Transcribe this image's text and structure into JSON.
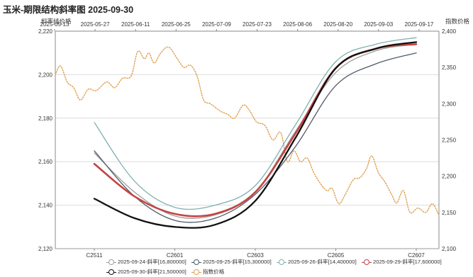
{
  "title": "玉米-期限结构斜率图 2025-09-30",
  "chart_data": {
    "type": "line",
    "left_axis": {
      "label": "斜率线价格",
      "range": [
        2120,
        2220
      ],
      "ticks": [
        "2,120",
        "2,140",
        "2,160",
        "2,180",
        "2,200",
        "2,220"
      ]
    },
    "right_axis": {
      "label": "指数价格",
      "range": [
        2100,
        2400
      ],
      "ticks": [
        "2,100",
        "2,150",
        "2,200",
        "2,250",
        "2,300",
        "2,350",
        "2,400"
      ]
    },
    "top_date_ticks": [
      "2025-05-13",
      "2025-05-27",
      "2025-06-11",
      "2025-06-25",
      "2025-07-09",
      "2025-07-23",
      "2025-08-06",
      "2025-08-20",
      "2025-09-03",
      "2025-09-17"
    ],
    "contract_ticks": [
      "C2511",
      "C2601",
      "C2603",
      "C2605",
      "C2607"
    ],
    "grid": true,
    "legend_position": "bottom",
    "slope_series": [
      {
        "name": "2025-09-24-斜率[16,800000]",
        "color": "#9e9e9e",
        "width": 1.3,
        "points": [
          [
            0,
            2164
          ],
          [
            0.5,
            2146
          ],
          [
            1,
            2135
          ],
          [
            1.5,
            2135.5
          ],
          [
            2,
            2146
          ],
          [
            2.5,
            2174
          ],
          [
            3,
            2201
          ],
          [
            3.5,
            2211
          ],
          [
            4,
            2214
          ]
        ]
      },
      {
        "name": "2025-09-25-斜率[15,300000]",
        "color": "#4e5a68",
        "width": 1.3,
        "points": [
          [
            0,
            2165
          ],
          [
            0.5,
            2144
          ],
          [
            1,
            2133
          ],
          [
            1.5,
            2134
          ],
          [
            2,
            2145
          ],
          [
            2.5,
            2167
          ],
          [
            3,
            2195
          ],
          [
            3.5,
            2205
          ],
          [
            4,
            2210
          ]
        ]
      },
      {
        "name": "2025-09-26-斜率[14,400000]",
        "color": "#7fb0b0",
        "width": 1.3,
        "points": [
          [
            0,
            2178
          ],
          [
            0.5,
            2151
          ],
          [
            1,
            2139
          ],
          [
            1.5,
            2140
          ],
          [
            2,
            2149
          ],
          [
            2.5,
            2177
          ],
          [
            3,
            2206
          ],
          [
            3.5,
            2214
          ],
          [
            4,
            2217
          ]
        ]
      },
      {
        "name": "2025-09-29-斜率[17,600000]",
        "color": "#c44444",
        "width": 2.6,
        "points": [
          [
            0,
            2159
          ],
          [
            0.5,
            2144
          ],
          [
            1,
            2136
          ],
          [
            1.5,
            2136
          ],
          [
            2,
            2146
          ],
          [
            2.5,
            2173
          ],
          [
            3,
            2203
          ],
          [
            3.5,
            2212
          ],
          [
            4,
            2214
          ]
        ]
      },
      {
        "name": "2025-09-30-斜率[21,500000]",
        "color": "#111111",
        "width": 2.3,
        "points": [
          [
            0,
            2143
          ],
          [
            0.5,
            2134
          ],
          [
            1,
            2130
          ],
          [
            1.5,
            2131
          ],
          [
            2,
            2142
          ],
          [
            2.5,
            2171
          ],
          [
            3,
            2203
          ],
          [
            3.5,
            2212
          ],
          [
            4,
            2215
          ]
        ]
      }
    ],
    "index_series": {
      "name": "指数价格",
      "color": "#e0a050",
      "points": [
        [
          0,
          2340
        ],
        [
          0.08,
          2352
        ],
        [
          0.18,
          2330
        ],
        [
          0.28,
          2322
        ],
        [
          0.38,
          2305
        ],
        [
          0.5,
          2320
        ],
        [
          0.62,
          2318
        ],
        [
          0.78,
          2330
        ],
        [
          0.9,
          2322
        ],
        [
          1.02,
          2335
        ],
        [
          1.15,
          2338
        ],
        [
          1.25,
          2372
        ],
        [
          1.35,
          2362
        ],
        [
          1.42,
          2370
        ],
        [
          1.5,
          2356
        ],
        [
          1.6,
          2370
        ],
        [
          1.72,
          2378
        ],
        [
          1.85,
          2362
        ],
        [
          1.95,
          2350
        ],
        [
          2.05,
          2353
        ],
        [
          2.15,
          2338
        ],
        [
          2.25,
          2305
        ],
        [
          2.35,
          2300
        ],
        [
          2.5,
          2290
        ],
        [
          2.62,
          2285
        ],
        [
          2.72,
          2280
        ],
        [
          2.85,
          2298
        ],
        [
          2.95,
          2290
        ],
        [
          3.05,
          2275
        ],
        [
          3.18,
          2270
        ],
        [
          3.3,
          2250
        ],
        [
          3.42,
          2260
        ],
        [
          3.52,
          2220
        ],
        [
          3.62,
          2235
        ],
        [
          3.72,
          2220
        ],
        [
          3.82,
          2225
        ],
        [
          3.92,
          2205
        ],
        [
          4.02,
          2190
        ],
        [
          4.12,
          2180
        ],
        [
          4.2,
          2183
        ],
        [
          4.3,
          2162
        ],
        [
          4.4,
          2175
        ],
        [
          4.52,
          2195
        ],
        [
          4.62,
          2198
        ],
        [
          4.72,
          2210
        ],
        [
          4.8,
          2228
        ],
        [
          4.9,
          2205
        ],
        [
          5.0,
          2192
        ],
        [
          5.1,
          2175
        ],
        [
          5.18,
          2163
        ],
        [
          5.28,
          2180
        ],
        [
          5.38,
          2150
        ],
        [
          5.5,
          2156
        ],
        [
          5.62,
          2150
        ],
        [
          5.72,
          2162
        ],
        [
          5.82,
          2146
        ]
      ]
    }
  },
  "legend": [
    {
      "label": "2025-09-24-斜率[16,800000]",
      "color": "#9e9e9e"
    },
    {
      "label": "2025-09-25-斜率[15,300000]",
      "color": "#4e5a68"
    },
    {
      "label": "2025-09-26-斜率[14,400000]",
      "color": "#7fb0b0"
    },
    {
      "label": "2025-09-29-斜率[17,600000]",
      "color": "#c44444"
    },
    {
      "label": "2025-09-30-斜率[21,500000]",
      "color": "#111111"
    },
    {
      "label": "指数价格",
      "color": "#e0a050"
    }
  ]
}
